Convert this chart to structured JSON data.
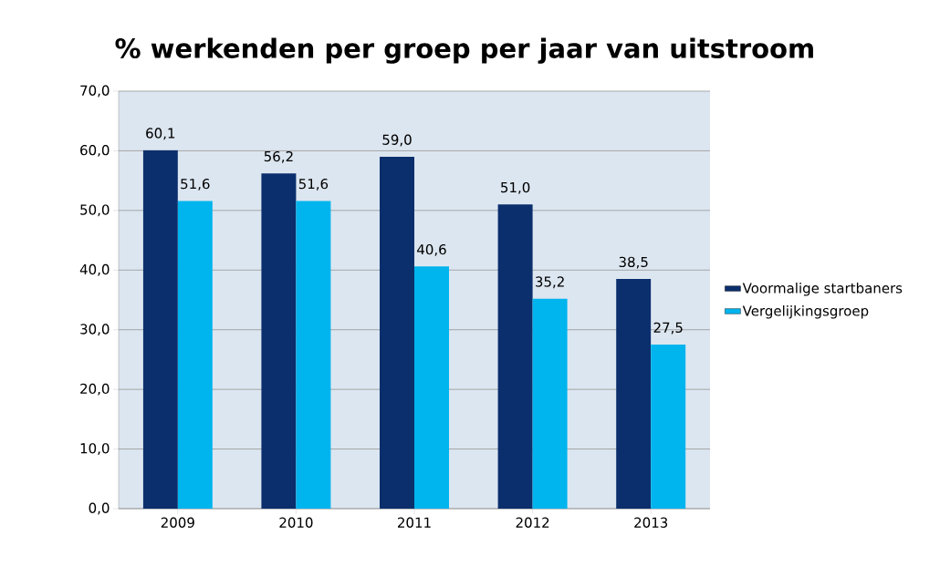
{
  "chart_data": {
    "type": "bar",
    "title": "% werkenden per groep per jaar van uitstroom",
    "categories": [
      "2009",
      "2010",
      "2011",
      "2012",
      "2013"
    ],
    "series": [
      {
        "name": "Voormalige startbaners",
        "color": "#0b2f6d",
        "values": [
          60.1,
          56.2,
          59.0,
          51.0,
          38.5
        ],
        "value_labels": [
          "60,1",
          "56,2",
          "59,0",
          "51,0",
          "38,5"
        ]
      },
      {
        "name": "Vergelijkingsgroep",
        "color": "#00b4ee",
        "values": [
          51.6,
          51.6,
          40.6,
          35.2,
          27.5
        ],
        "value_labels": [
          "51,6",
          "51,6",
          "40,6",
          "35,2",
          "27,5"
        ]
      }
    ],
    "ylim": [
      0,
      70
    ],
    "yticks": [
      {
        "value": 0,
        "label": "0,0"
      },
      {
        "value": 10,
        "label": "10,0"
      },
      {
        "value": 20,
        "label": "20,0"
      },
      {
        "value": 30,
        "label": "30,0"
      },
      {
        "value": 40,
        "label": "40,0"
      },
      {
        "value": 50,
        "label": "50,0"
      },
      {
        "value": 60,
        "label": "60,0"
      },
      {
        "value": 70,
        "label": "70,0"
      }
    ],
    "grid": "y",
    "legend": "right"
  }
}
